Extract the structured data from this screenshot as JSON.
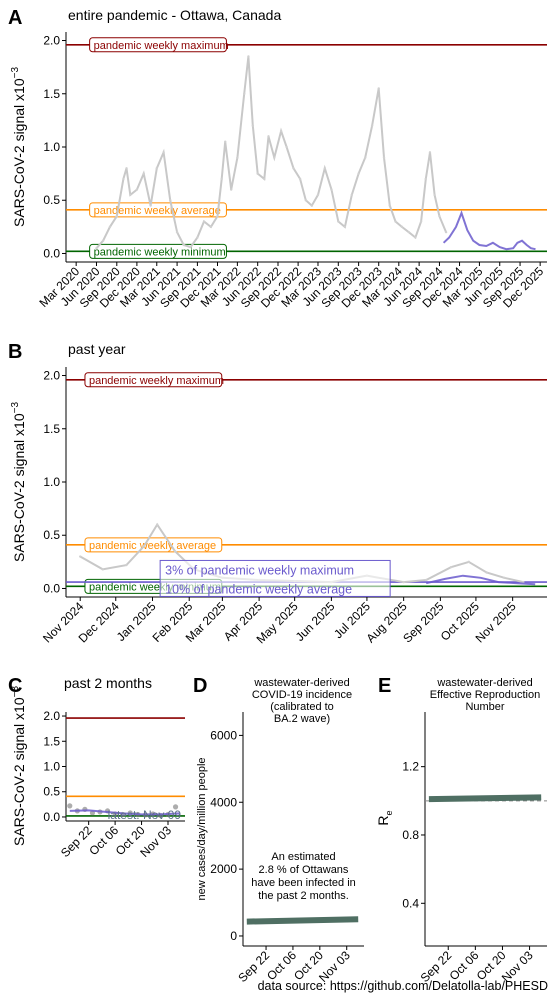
{
  "colors": {
    "max": "#8b0000",
    "avg": "#ff8c00",
    "min": "#006400",
    "raw": "#bdbdbd",
    "trend": "#6a5acd",
    "model": "#4f6f63",
    "grid": "#dddddd"
  },
  "footer": {
    "source": "data source: https://github.com/Delatolla-lab/PHESD"
  },
  "chart_data": [
    {
      "id": "A",
      "type": "line",
      "letter": "A",
      "title": "entire pandemic - Ottawa, Canada",
      "ylabel": "SARS-CoV-2 signal x10",
      "ylabel_exp": "−3",
      "xlim": [
        "2020-01-15",
        "2026-01-01"
      ],
      "ylim": [
        -0.08,
        2.08
      ],
      "yticks": [
        0.0,
        0.5,
        1.0,
        1.5,
        2.0
      ],
      "ytick_labels": [
        "0.0",
        "0.5",
        "1.0",
        "1.5",
        "2.0"
      ],
      "xticks": [
        "2020-03-01",
        "2020-06-01",
        "2020-09-01",
        "2020-12-01",
        "2021-03-01",
        "2021-06-01",
        "2021-09-01",
        "2021-12-01",
        "2022-03-01",
        "2022-06-01",
        "2022-09-01",
        "2022-12-01",
        "2023-03-01",
        "2023-06-01",
        "2023-09-01",
        "2023-12-01",
        "2024-03-01",
        "2024-06-01",
        "2024-09-01",
        "2024-12-01",
        "2025-03-01",
        "2025-06-01",
        "2025-09-01",
        "2025-12-01"
      ],
      "xtick_labels": [
        "Mar 2020",
        "Jun 2020",
        "Sep 2020",
        "Dec 2020",
        "Mar 2021",
        "Jun 2021",
        "Sep 2021",
        "Dec 2021",
        "Mar 2022",
        "Jun 2022",
        "Sep 2022",
        "Dec 2022",
        "Mar 2023",
        "Jun 2023",
        "Sep 2023",
        "Dec 2023",
        "Mar 2024",
        "Jun 2024",
        "Sep 2024",
        "Dec 2024",
        "Mar 2025",
        "Jun 2025",
        "Sep 2025",
        "Dec 2025"
      ],
      "hlines": [
        {
          "name": "pandemic weekly maximum",
          "y": 1.96,
          "color": "#8b0000",
          "label": "pandemic weekly maximum"
        },
        {
          "name": "pandemic weekly average",
          "y": 0.41,
          "color": "#ff8c00",
          "label": "pandemic weekly average"
        },
        {
          "name": "pandemic weekly minimum",
          "y": 0.02,
          "color": "#006400",
          "label": "pandemic weekly minimum"
        }
      ],
      "label_date": "2020-05-01",
      "series": [
        {
          "role": "raw",
          "color": "#c8c8c8",
          "x": [
            "2020-06-01",
            "2020-07-01",
            "2020-08-01",
            "2020-09-01",
            "2020-10-01",
            "2020-10-15",
            "2020-11-01",
            "2020-12-01",
            "2021-01-01",
            "2021-02-01",
            "2021-03-01",
            "2021-04-01",
            "2021-05-01",
            "2021-06-01",
            "2021-07-01",
            "2021-08-01",
            "2021-09-01",
            "2021-10-01",
            "2021-11-01",
            "2021-12-01",
            "2021-12-20",
            "2022-01-05",
            "2022-02-01",
            "2022-03-01",
            "2022-04-01",
            "2022-04-20",
            "2022-05-10",
            "2022-06-01",
            "2022-07-01",
            "2022-07-20",
            "2022-08-15",
            "2022-09-15",
            "2022-10-10",
            "2022-11-10",
            "2022-12-10",
            "2023-01-05",
            "2023-02-01",
            "2023-03-01",
            "2023-04-01",
            "2023-05-01",
            "2023-06-01",
            "2023-07-01",
            "2023-08-01",
            "2023-09-01",
            "2023-10-01",
            "2023-11-01",
            "2023-12-01",
            "2023-12-25",
            "2024-01-20",
            "2024-02-15",
            "2024-03-15",
            "2024-04-15",
            "2024-05-15",
            "2024-06-10",
            "2024-07-01",
            "2024-07-20",
            "2024-08-10",
            "2024-09-01",
            "2024-10-01"
          ],
          "y": [
            0.05,
            0.12,
            0.25,
            0.35,
            0.7,
            0.8,
            0.55,
            0.6,
            0.75,
            0.45,
            0.8,
            0.95,
            0.5,
            0.2,
            0.08,
            0.06,
            0.15,
            0.3,
            0.25,
            0.35,
            0.7,
            1.05,
            0.6,
            0.9,
            1.5,
            1.85,
            1.2,
            0.75,
            0.7,
            1.1,
            0.9,
            1.15,
            1.0,
            0.8,
            0.7,
            0.5,
            0.45,
            0.55,
            0.8,
            0.6,
            0.3,
            0.25,
            0.55,
            0.75,
            0.9,
            1.2,
            1.55,
            0.9,
            0.45,
            0.3,
            0.25,
            0.2,
            0.15,
            0.3,
            0.7,
            0.95,
            0.55,
            0.35,
            0.2
          ]
        },
        {
          "role": "trend",
          "color": "#6a5acd",
          "x": [
            "2024-09-20",
            "2024-10-15",
            "2024-11-15",
            "2024-12-10",
            "2025-01-05",
            "2025-02-01",
            "2025-03-01",
            "2025-04-01",
            "2025-05-01",
            "2025-06-01",
            "2025-07-01",
            "2025-08-01",
            "2025-08-20",
            "2025-09-10",
            "2025-10-01",
            "2025-10-20",
            "2025-11-10"
          ],
          "y": [
            0.1,
            0.15,
            0.25,
            0.38,
            0.22,
            0.12,
            0.08,
            0.07,
            0.1,
            0.06,
            0.04,
            0.05,
            0.1,
            0.12,
            0.08,
            0.05,
            0.04
          ]
        }
      ]
    },
    {
      "id": "B",
      "type": "line",
      "letter": "B",
      "title": "past year",
      "ylabel": "SARS-CoV-2 signal x10",
      "ylabel_exp": "−3",
      "xlim": [
        "2024-10-20",
        "2025-11-30"
      ],
      "ylim": [
        -0.08,
        2.08
      ],
      "yticks": [
        0.0,
        0.5,
        1.0,
        1.5,
        2.0
      ],
      "ytick_labels": [
        "0.0",
        "0.5",
        "1.0",
        "1.5",
        "2.0"
      ],
      "xticks": [
        "2024-11-01",
        "2024-12-01",
        "2025-01-01",
        "2025-02-01",
        "2025-03-01",
        "2025-04-01",
        "2025-05-01",
        "2025-06-01",
        "2025-07-01",
        "2025-08-01",
        "2025-09-01",
        "2025-10-01",
        "2025-11-01"
      ],
      "xtick_labels": [
        "Nov 2024",
        "Dec 2024",
        "Jan 2025",
        "Feb 2025",
        "Mar 2025",
        "Apr 2025",
        "May 2025",
        "Jun 2025",
        "Jul 2025",
        "Aug 2025",
        "Sep 2025",
        "Oct 2025",
        "Nov 2025"
      ],
      "hlines": [
        {
          "name": "pandemic weekly maximum",
          "y": 1.96,
          "color": "#8b0000",
          "label": "pandemic weekly maximum"
        },
        {
          "name": "pandemic weekly average",
          "y": 0.41,
          "color": "#ff8c00",
          "label": "pandemic weekly average"
        },
        {
          "name": "pandemic weekly minimum",
          "y": 0.02,
          "color": "#006400",
          "label": "pandemic weekly minimum"
        },
        {
          "name": "3% of pandemic weekly maximum",
          "y": 0.06,
          "color": "#6a5acd",
          "label": ""
        }
      ],
      "label_date": "2024-11-05",
      "box_labels": [
        "3% of pandemic weekly maximum",
        "10% of pandemic weekly average"
      ],
      "box_label_date": "2025-01-10",
      "series": [
        {
          "role": "raw",
          "color": "#c8c8c8",
          "x": [
            "2024-11-01",
            "2024-11-20",
            "2024-12-10",
            "2024-12-25",
            "2025-01-05",
            "2025-01-20",
            "2025-02-05",
            "2025-03-01",
            "2025-04-01",
            "2025-05-01",
            "2025-06-01",
            "2025-07-01",
            "2025-08-01",
            "2025-08-20",
            "2025-09-10",
            "2025-09-25",
            "2025-10-10",
            "2025-10-25",
            "2025-11-10"
          ],
          "y": [
            0.3,
            0.18,
            0.22,
            0.4,
            0.6,
            0.35,
            0.18,
            0.1,
            0.08,
            0.07,
            0.06,
            0.12,
            0.06,
            0.08,
            0.2,
            0.25,
            0.15,
            0.1,
            0.06
          ]
        },
        {
          "role": "trend",
          "color": "#6a5acd",
          "x": [
            "2025-08-20",
            "2025-09-05",
            "2025-09-20",
            "2025-10-05",
            "2025-10-20",
            "2025-11-05",
            "2025-11-20"
          ],
          "y": [
            0.05,
            0.09,
            0.12,
            0.1,
            0.06,
            0.05,
            0.04
          ]
        }
      ]
    },
    {
      "id": "C",
      "type": "line",
      "letter": "C",
      "title": "past 2 months",
      "ylabel": "SARS-CoV-2 signal x10",
      "ylabel_exp": "−3",
      "xlim": [
        "2025-09-10",
        "2025-11-12"
      ],
      "ylim": [
        -0.08,
        2.08
      ],
      "yticks": [
        0.0,
        0.5,
        1.0,
        1.5,
        2.0
      ],
      "ytick_labels": [
        "0.0",
        "0.5",
        "1.0",
        "1.5",
        "2.0"
      ],
      "xticks": [
        "2025-09-22",
        "2025-10-06",
        "2025-10-20",
        "2025-11-03"
      ],
      "xtick_labels": [
        "Sep 22",
        "Oct 06",
        "Oct 20",
        "Nov 03"
      ],
      "hlines": [
        {
          "name": "pandemic weekly maximum",
          "y": 1.96,
          "color": "#8b0000",
          "label": ""
        },
        {
          "name": "pandemic weekly average",
          "y": 0.41,
          "color": "#ff8c00",
          "label": ""
        },
        {
          "name": "pandemic weekly minimum",
          "y": 0.02,
          "color": "#006400",
          "label": ""
        }
      ],
      "annotation": "latest: Nov 09",
      "series": [
        {
          "role": "points",
          "color": "#6a5acd",
          "x": [
            "2025-09-12",
            "2025-09-16",
            "2025-09-20",
            "2025-09-24",
            "2025-09-28",
            "2025-10-02",
            "2025-10-06",
            "2025-10-10",
            "2025-10-14",
            "2025-10-18",
            "2025-10-22",
            "2025-10-26",
            "2025-10-30",
            "2025-11-03",
            "2025-11-07"
          ],
          "y": [
            0.22,
            0.12,
            0.15,
            0.08,
            0.1,
            0.12,
            0.06,
            0.05,
            0.08,
            0.05,
            0.04,
            0.06,
            0.03,
            0.05,
            0.2
          ]
        },
        {
          "role": "trend",
          "color": "#6a5acd",
          "x": [
            "2025-09-12",
            "2025-09-22",
            "2025-10-01",
            "2025-10-10",
            "2025-10-20",
            "2025-10-30",
            "2025-11-09"
          ],
          "y": [
            0.12,
            0.13,
            0.1,
            0.07,
            0.05,
            0.05,
            0.07
          ]
        }
      ]
    },
    {
      "id": "D",
      "type": "line",
      "letter": "D",
      "title": [
        "wastewater-derived",
        "COVID-19 incidence",
        "(calibrated to",
        "BA.2 wave)"
      ],
      "ylabel": "new cases/day/million people",
      "xlim": [
        "2025-09-10",
        "2025-11-12"
      ],
      "ylim": [
        -300,
        6700
      ],
      "yticks": [
        0,
        2000,
        4000,
        6000
      ],
      "ytick_labels": [
        "0",
        "2000",
        "4000",
        "6000"
      ],
      "xticks": [
        "2025-09-22",
        "2025-10-06",
        "2025-10-20",
        "2025-11-03"
      ],
      "xtick_labels": [
        "Sep 22",
        "Oct 06",
        "Oct 20",
        "Nov 03"
      ],
      "annotation": [
        "An estimated",
        "2.8 % of Ottawans",
        "have been infected in",
        "the past 2 months."
      ],
      "series": [
        {
          "role": "model",
          "color": "#4f6f63",
          "x": [
            "2025-09-12",
            "2025-11-09"
          ],
          "y": [
            430,
            500
          ]
        }
      ]
    },
    {
      "id": "E",
      "type": "line",
      "letter": "E",
      "title": [
        "wastewater-derived",
        "Effective Reproduction",
        "Number"
      ],
      "ylabel": "R",
      "ylabel_sub": "e",
      "xlim": [
        "2025-09-10",
        "2025-11-12"
      ],
      "ylim": [
        0.15,
        1.52
      ],
      "yticks": [
        0.4,
        0.8,
        1.2
      ],
      "ytick_labels": [
        "0.4",
        "0.8",
        "1.2"
      ],
      "xticks": [
        "2025-09-22",
        "2025-10-06",
        "2025-10-20",
        "2025-11-03"
      ],
      "xtick_labels": [
        "Sep 22",
        "Oct 06",
        "Oct 20",
        "Nov 03"
      ],
      "reference": 1.0,
      "series": [
        {
          "role": "model",
          "color": "#4f6f63",
          "x": [
            "2025-09-12",
            "2025-11-09"
          ],
          "y": [
            1.01,
            1.02
          ]
        }
      ]
    }
  ]
}
